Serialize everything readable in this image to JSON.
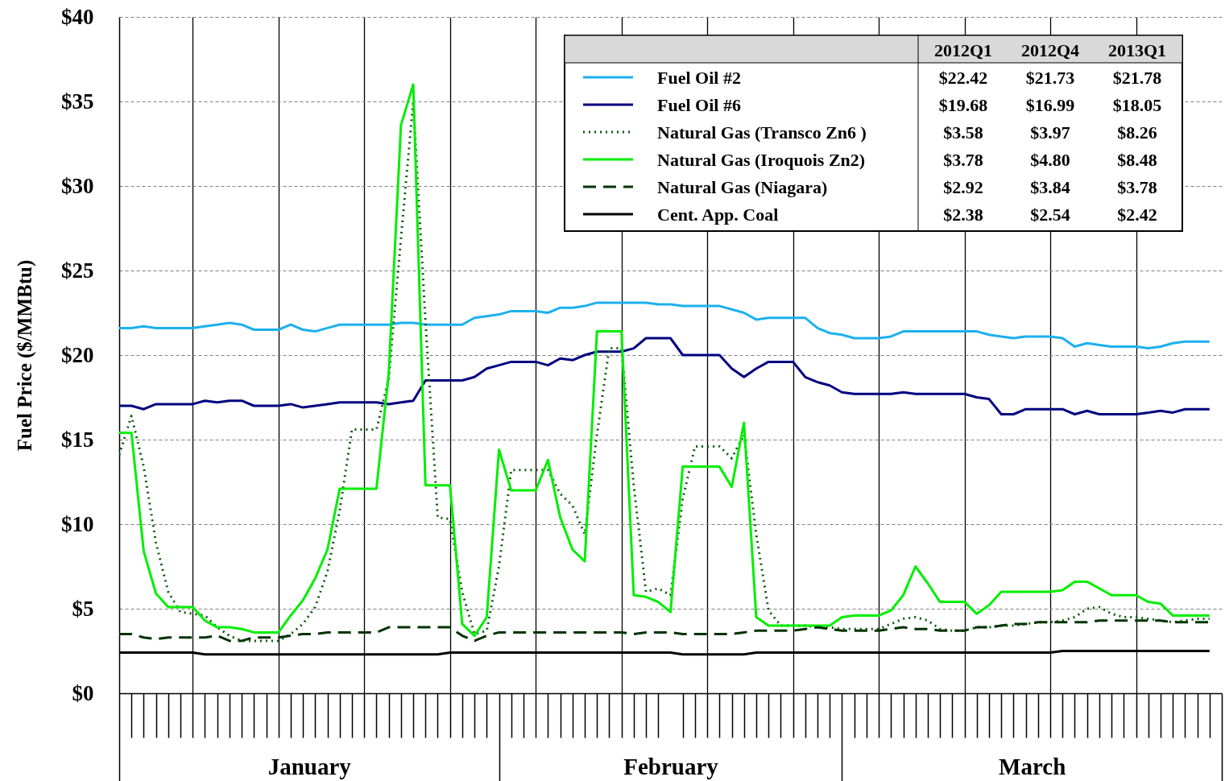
{
  "chart_data": {
    "type": "line",
    "ylabel": "Fuel Price ($/MMBtu)",
    "x": [
      "--01-01",
      "--01-02",
      "--01-03",
      "--01-04",
      "--01-05",
      "--01-06",
      "--01-07",
      "--01-08",
      "--01-09",
      "--01-10",
      "--01-11",
      "--01-12",
      "--01-13",
      "--01-14",
      "--01-15",
      "--01-16",
      "--01-17",
      "--01-18",
      "--01-19",
      "--01-20",
      "--01-21",
      "--01-22",
      "--01-23",
      "--01-24",
      "--01-25",
      "--01-26",
      "--01-27",
      "--01-28",
      "--01-29",
      "--01-30",
      "--01-31",
      "--02-01",
      "--02-02",
      "--02-03",
      "--02-04",
      "--02-05",
      "--02-06",
      "--02-07",
      "--02-08",
      "--02-09",
      "--02-10",
      "--02-11",
      "--02-12",
      "--02-13",
      "--02-14",
      "--02-15",
      "--02-16",
      "--02-17",
      "--02-18",
      "--02-19",
      "--02-20",
      "--02-21",
      "--02-22",
      "--02-23",
      "--02-24",
      "--02-25",
      "--02-26",
      "--02-27",
      "--02-28",
      "--03-01",
      "--03-02",
      "--03-03",
      "--03-04",
      "--03-05",
      "--03-06",
      "--03-07",
      "--03-08",
      "--03-09",
      "--03-10",
      "--03-11",
      "--03-12",
      "--03-13",
      "--03-14",
      "--03-15",
      "--03-16",
      "--03-17",
      "--03-18",
      "--03-19",
      "--03-20",
      "--03-21",
      "--03-22",
      "--03-23",
      "--03-24",
      "--03-25",
      "--03-26",
      "--03-27",
      "--03-28",
      "--03-29",
      "--03-30",
      "--03-31"
    ],
    "xlim": [
      "--01-01",
      "--04-01"
    ],
    "xticks": [
      {
        "value": "--01-07",
        "label": null
      },
      {
        "value": "--01-14",
        "label": null
      },
      {
        "value": "--01-21",
        "label": null
      },
      {
        "value": "--01-28",
        "label": null
      },
      {
        "value": "--02-04",
        "label": null
      },
      {
        "value": "--02-11",
        "label": null
      },
      {
        "value": "--02-18",
        "label": null
      },
      {
        "value": "--02-25",
        "label": null
      },
      {
        "value": "--03-04",
        "label": null
      },
      {
        "value": "--03-11",
        "label": null
      },
      {
        "value": "--03-18",
        "label": null
      },
      {
        "value": "--03-25",
        "label": null
      },
      {
        "value": "--01-16T12:00",
        "label": "January"
      },
      {
        "value": "--02-15",
        "label": "February"
      },
      {
        "value": "--03-16T12:00",
        "label": "March"
      }
    ],
    "ylim": [
      0,
      40
    ],
    "yticks": [
      {
        "value": 0,
        "label": "$0"
      },
      {
        "value": 5,
        "label": "$5"
      },
      {
        "value": 10,
        "label": "$10"
      },
      {
        "value": 15,
        "label": "$15"
      },
      {
        "value": 20,
        "label": "$20"
      },
      {
        "value": 25,
        "label": "$25"
      },
      {
        "value": 30,
        "label": "$30"
      },
      {
        "value": 35,
        "label": "$35"
      },
      {
        "value": 40,
        "label": "$40"
      }
    ],
    "grid": true,
    "legend": "top right",
    "series": [
      {
        "name": "Fuel Oil #2",
        "color": "#1cb0ee",
        "line_style": "solid",
        "values": [
          21.6,
          21.6,
          21.7,
          21.6,
          21.6,
          21.6,
          21.6,
          21.7,
          21.8,
          21.9,
          21.8,
          21.5,
          21.5,
          21.5,
          21.8,
          21.5,
          21.4,
          21.6,
          21.8,
          21.8,
          21.8,
          21.8,
          21.8,
          21.9,
          21.9,
          21.8,
          21.8,
          21.8,
          21.8,
          22.2,
          22.3,
          22.4,
          22.6,
          22.6,
          22.6,
          22.5,
          22.8,
          22.8,
          22.9,
          23.1,
          23.1,
          23.1,
          23.1,
          23.1,
          23.0,
          23.0,
          22.9,
          22.9,
          22.9,
          22.9,
          22.7,
          22.5,
          22.1,
          22.2,
          22.2,
          22.2,
          22.2,
          21.6,
          21.3,
          21.2,
          21.0,
          21.0,
          21.0,
          21.1,
          21.4,
          21.4,
          21.4,
          21.4,
          21.4,
          21.4,
          21.4,
          21.2,
          21.1,
          21.0,
          21.1,
          21.1,
          21.1,
          21.0,
          20.5,
          20.7,
          20.6,
          20.5,
          20.5,
          20.5,
          20.4,
          20.5,
          20.7,
          20.8,
          20.8,
          20.8
        ]
      },
      {
        "name": "Fuel Oil #6",
        "color": "#000080",
        "line_style": "solid",
        "values": [
          17.0,
          17.0,
          16.8,
          17.1,
          17.1,
          17.1,
          17.1,
          17.3,
          17.2,
          17.3,
          17.3,
          17.0,
          17.0,
          17.0,
          17.1,
          16.9,
          17.0,
          17.1,
          17.2,
          17.2,
          17.2,
          17.2,
          17.1,
          17.2,
          17.3,
          18.5,
          18.5,
          18.5,
          18.5,
          18.7,
          19.2,
          19.4,
          19.6,
          19.6,
          19.6,
          19.4,
          19.8,
          19.7,
          20.0,
          20.2,
          20.2,
          20.2,
          20.4,
          21.0,
          21.0,
          21.0,
          20.0,
          20.0,
          20.0,
          20.0,
          19.2,
          18.7,
          19.2,
          19.6,
          19.6,
          19.6,
          18.7,
          18.4,
          18.2,
          17.8,
          17.7,
          17.7,
          17.7,
          17.7,
          17.8,
          17.7,
          17.7,
          17.7,
          17.7,
          17.7,
          17.5,
          17.4,
          16.5,
          16.5,
          16.8,
          16.8,
          16.8,
          16.8,
          16.5,
          16.7,
          16.5,
          16.5,
          16.5,
          16.5,
          16.6,
          16.7,
          16.6,
          16.8,
          16.8,
          16.8
        ]
      },
      {
        "name": "Natural Gas (Transco Zn6 )",
        "color": "#0b5a0b",
        "line_style": "dotted",
        "values": [
          14.1,
          16.4,
          13.4,
          8.9,
          6.0,
          4.8,
          4.7,
          4.6,
          3.9,
          3.4,
          3.1,
          3.1,
          3.1,
          3.1,
          3.5,
          4.1,
          5.1,
          7.2,
          10.8,
          15.6,
          15.6,
          15.6,
          18.6,
          26.9,
          35.0,
          22.0,
          10.4,
          10.3,
          6.0,
          3.5,
          3.7,
          7.5,
          13.2,
          13.2,
          13.2,
          13.2,
          11.8,
          11.1,
          9.4,
          15.3,
          20.4,
          20.4,
          12.3,
          6.0,
          6.2,
          5.8,
          11.5,
          14.6,
          14.6,
          14.6,
          13.9,
          15.3,
          9.4,
          4.9,
          4.0,
          4.0,
          4.0,
          3.9,
          3.9,
          3.8,
          3.8,
          3.8,
          3.8,
          4.1,
          4.4,
          4.5,
          4.3,
          3.8,
          3.7,
          3.7,
          3.9,
          3.9,
          4.0,
          4.0,
          4.1,
          4.2,
          4.2,
          4.3,
          4.5,
          5.0,
          5.1,
          4.7,
          4.5,
          4.5,
          4.4,
          4.3,
          4.2,
          4.3,
          4.4,
          4.4
        ]
      },
      {
        "name": "Natural Gas (Iroquois Zn2)",
        "color": "#00ee00",
        "line_style": "solid",
        "values": [
          15.4,
          15.4,
          8.4,
          5.9,
          5.1,
          5.1,
          5.1,
          4.3,
          3.9,
          3.9,
          3.8,
          3.6,
          3.6,
          3.6,
          4.6,
          5.5,
          6.8,
          8.5,
          12.1,
          12.1,
          12.1,
          12.1,
          18.9,
          33.6,
          36.0,
          12.3,
          12.3,
          12.3,
          4.1,
          3.4,
          4.5,
          14.4,
          12.0,
          12.0,
          12.0,
          13.8,
          10.4,
          8.5,
          7.8,
          21.4,
          21.4,
          21.4,
          5.8,
          5.7,
          5.4,
          4.8,
          13.4,
          13.4,
          13.4,
          13.4,
          12.2,
          16.0,
          4.5,
          4.0,
          4.0,
          4.0,
          4.0,
          4.0,
          4.0,
          4.5,
          4.6,
          4.6,
          4.6,
          4.9,
          5.8,
          7.5,
          6.5,
          5.4,
          5.4,
          5.4,
          4.7,
          5.2,
          6.0,
          6.0,
          6.0,
          6.0,
          6.0,
          6.1,
          6.6,
          6.6,
          6.2,
          5.8,
          5.8,
          5.8,
          5.4,
          5.3,
          4.6,
          4.6,
          4.6,
          4.6
        ]
      },
      {
        "name": "Natural Gas (Niagara)",
        "color": "#003300",
        "line_style": "dashed",
        "values": [
          3.5,
          3.5,
          3.3,
          3.2,
          3.3,
          3.3,
          3.3,
          3.3,
          3.4,
          3.1,
          3.1,
          3.3,
          3.3,
          3.3,
          3.4,
          3.5,
          3.5,
          3.6,
          3.6,
          3.6,
          3.6,
          3.6,
          3.9,
          3.9,
          3.9,
          3.9,
          3.9,
          3.9,
          3.4,
          3.1,
          3.4,
          3.6,
          3.6,
          3.6,
          3.6,
          3.6,
          3.6,
          3.6,
          3.6,
          3.6,
          3.6,
          3.6,
          3.5,
          3.6,
          3.6,
          3.6,
          3.5,
          3.5,
          3.5,
          3.5,
          3.5,
          3.6,
          3.7,
          3.7,
          3.7,
          3.7,
          3.8,
          3.9,
          3.8,
          3.7,
          3.7,
          3.7,
          3.7,
          3.8,
          3.9,
          3.8,
          3.8,
          3.7,
          3.7,
          3.7,
          3.9,
          3.9,
          4.0,
          4.1,
          4.1,
          4.2,
          4.2,
          4.2,
          4.2,
          4.2,
          4.3,
          4.3,
          4.3,
          4.3,
          4.3,
          4.3,
          4.2,
          4.2,
          4.2,
          4.2
        ]
      },
      {
        "name": "Cent. App. Coal",
        "color": "#000000",
        "line_style": "solid",
        "values": [
          2.4,
          2.4,
          2.4,
          2.4,
          2.4,
          2.4,
          2.4,
          2.3,
          2.3,
          2.3,
          2.3,
          2.3,
          2.3,
          2.3,
          2.3,
          2.3,
          2.3,
          2.3,
          2.3,
          2.3,
          2.3,
          2.3,
          2.3,
          2.3,
          2.3,
          2.3,
          2.3,
          2.4,
          2.4,
          2.4,
          2.4,
          2.4,
          2.4,
          2.4,
          2.4,
          2.4,
          2.4,
          2.4,
          2.4,
          2.4,
          2.4,
          2.4,
          2.4,
          2.4,
          2.4,
          2.4,
          2.3,
          2.3,
          2.3,
          2.3,
          2.3,
          2.3,
          2.4,
          2.4,
          2.4,
          2.4,
          2.4,
          2.4,
          2.4,
          2.4,
          2.4,
          2.4,
          2.4,
          2.4,
          2.4,
          2.4,
          2.4,
          2.4,
          2.4,
          2.4,
          2.4,
          2.4,
          2.4,
          2.4,
          2.4,
          2.4,
          2.4,
          2.5,
          2.5,
          2.5,
          2.5,
          2.5,
          2.5,
          2.5,
          2.5,
          2.5,
          2.5,
          2.5,
          2.5,
          2.5
        ]
      }
    ],
    "annotations": [
      "2012Q1",
      "2012Q4",
      "2013Q1",
      "$22.42",
      "$21.73",
      "$21.78",
      "$19.68",
      "$16.99",
      "$18.05",
      "$3.58",
      "$3.97",
      "$8.26",
      "$3.78",
      "$4.80",
      "$8.48",
      "$2.92",
      "$3.84",
      "$3.78",
      "$2.38",
      "$2.54",
      "$2.42"
    ]
  }
}
